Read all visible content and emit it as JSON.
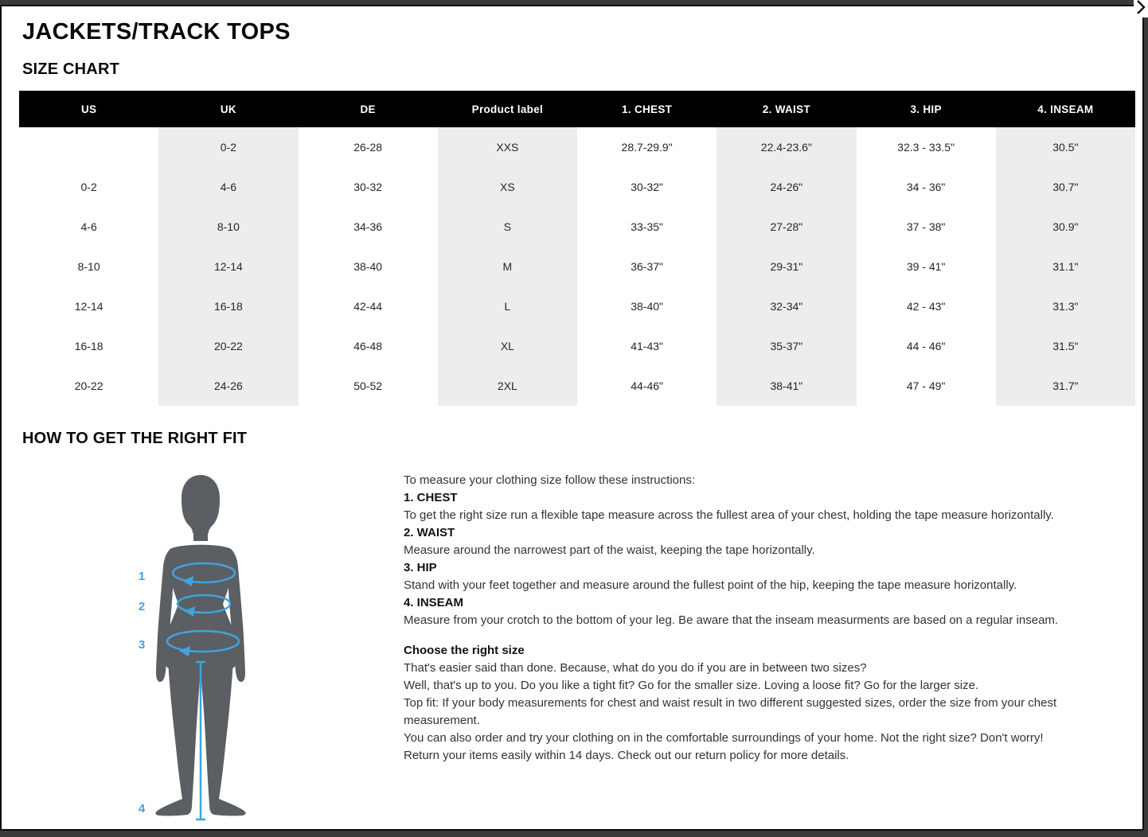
{
  "modal": {
    "title": "JACKETS/TRACK TOPS",
    "size_chart_heading": "SIZE CHART",
    "fit_heading": "HOW TO GET THE RIGHT FIT"
  },
  "icons": {
    "close": "chevron-right"
  },
  "size_table": {
    "columns": [
      "US",
      "UK",
      "DE",
      "Product label",
      "1. CHEST",
      "2. WAIST",
      "3. HIP",
      "4. INSEAM"
    ],
    "rows": [
      [
        "",
        "0-2",
        "26-28",
        "XXS",
        "28.7-29.9\"",
        "22.4-23.6\"",
        "32.3 - 33.5\"",
        "30.5\""
      ],
      [
        "0-2",
        "4-6",
        "30-32",
        "XS",
        "30-32\"",
        "24-26\"",
        "34 - 36\"",
        "30.7\""
      ],
      [
        "4-6",
        "8-10",
        "34-36",
        "S",
        "33-35\"",
        "27-28\"",
        "37 - 38\"",
        "30.9\""
      ],
      [
        "8-10",
        "12-14",
        "38-40",
        "M",
        "36-37\"",
        "29-31\"",
        "39 - 41\"",
        "31.1\""
      ],
      [
        "12-14",
        "16-18",
        "42-44",
        "L",
        "38-40\"",
        "32-34\"",
        "42 - 43\"",
        "31.3\""
      ],
      [
        "16-18",
        "20-22",
        "46-48",
        "XL",
        "41-43\"",
        "35-37\"",
        "44 - 46\"",
        "31.5\""
      ],
      [
        "20-22",
        "24-26",
        "50-52",
        "2XL",
        "44-46\"",
        "38-41\"",
        "47 - 49\"",
        "31.7\""
      ]
    ]
  },
  "figure": {
    "labels": [
      "1",
      "2",
      "3",
      "4"
    ],
    "accent_color": "#41a3dc",
    "silhouette_color": "#5b5f63"
  },
  "instructions": {
    "intro": "To measure your clothing size follow these instructions:",
    "steps": [
      {
        "label": "1. CHEST",
        "text": "To get the right size run a flexible tape measure across the fullest area of your chest, holding the tape measure horizontally."
      },
      {
        "label": "2. WAIST",
        "text": "Measure around the narrowest part of the waist, keeping the tape horizontally."
      },
      {
        "label": "3. HIP",
        "text": "Stand with your feet together and measure around the fullest point of the hip, keeping the tape measure horizontally."
      },
      {
        "label": "4. INSEAM",
        "text": "Measure from your crotch to the bottom of your leg. Be aware that the inseam measurments are based on a regular inseam."
      }
    ],
    "choose": {
      "label": "Choose the right size",
      "lines": [
        "That's easier said than done. Because, what do you do if you are in between two sizes?",
        "Well, that's up to you. Do you like a tight fit? Go for the smaller size. Loving a loose fit? Go for the larger size.",
        "Top fit: If your body measurements for chest and waist result in two different suggested sizes, order the size from your chest",
        "measurement.",
        "You can also order and try your clothing on in the comfortable surroundings of your home. Not the right size? Don't worry!",
        "Return your items easily within 14 days. Check out our return policy for more details."
      ]
    }
  }
}
